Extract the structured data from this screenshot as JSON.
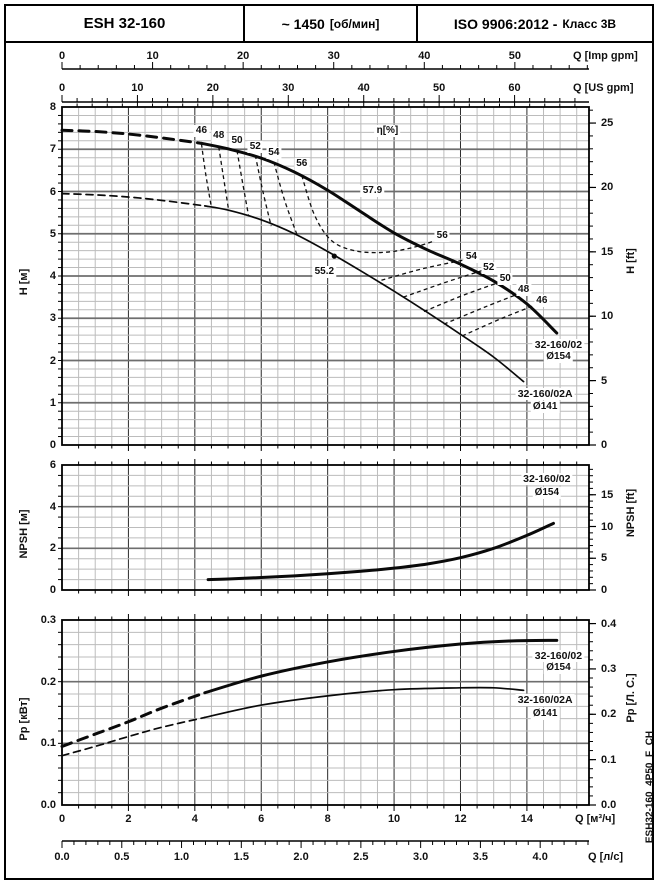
{
  "header": {
    "model": "ESH 32-160",
    "speed_value": "~ 1450",
    "speed_unit": "[об/мин]",
    "iso_main": "ISO 9906:2012 -",
    "iso_class": "Класс 3В"
  },
  "side_code": "ESH32-160_4P50_F_CH",
  "axes": {
    "imp_gpm": {
      "label": "Q [Imp gpm]",
      "minor_q": 0.5455,
      "ticks": [
        {
          "t": "0",
          "q": 0
        },
        {
          "t": "10",
          "q": 2.728
        },
        {
          "t": "20",
          "q": 5.455
        },
        {
          "t": "30",
          "q": 8.183
        },
        {
          "t": "40",
          "q": 10.911
        },
        {
          "t": "50",
          "q": 13.638
        }
      ]
    },
    "us_gpm": {
      "label": "Q [US gpm]",
      "minor_q": 0.4543,
      "ticks": [
        {
          "t": "0",
          "q": 0
        },
        {
          "t": "10",
          "q": 2.271
        },
        {
          "t": "20",
          "q": 4.543
        },
        {
          "t": "30",
          "q": 6.814
        },
        {
          "t": "40",
          "q": 9.085
        },
        {
          "t": "50",
          "q": 11.356
        },
        {
          "t": "60",
          "q": 13.628
        }
      ]
    },
    "m3h": {
      "label": "Q [м³/ч]",
      "minor_q": 0.5,
      "ticks": [
        {
          "t": "0",
          "q": 0
        },
        {
          "t": "2",
          "q": 2
        },
        {
          "t": "4",
          "q": 4
        },
        {
          "t": "6",
          "q": 6
        },
        {
          "t": "8",
          "q": 8
        },
        {
          "t": "10",
          "q": 10
        },
        {
          "t": "12",
          "q": 12
        },
        {
          "t": "14",
          "q": 14
        }
      ]
    },
    "ls": {
      "label": "Q [л/с]",
      "minor_q": 0.36,
      "ticks": [
        {
          "t": "0.0",
          "q": 0
        },
        {
          "t": "0.5",
          "q": 1.8
        },
        {
          "t": "1.0",
          "q": 3.6
        },
        {
          "t": "1.5",
          "q": 5.4
        },
        {
          "t": "2.0",
          "q": 7.2
        },
        {
          "t": "2.5",
          "q": 9.0
        },
        {
          "t": "3.0",
          "q": 10.8
        },
        {
          "t": "3.5",
          "q": 12.6
        },
        {
          "t": "4.0",
          "q": 14.4
        }
      ]
    }
  },
  "chart_data": [
    {
      "id": "head",
      "type": "line",
      "x_unit": "м³/ч",
      "xlim": [
        0,
        15.87
      ],
      "ylim": [
        0,
        8
      ],
      "left_axis": {
        "title": "H [м]",
        "minor": 0.2,
        "ticks": [
          {
            "t": "0",
            "v": 0
          },
          {
            "t": "1",
            "v": 1
          },
          {
            "t": "2",
            "v": 2
          },
          {
            "t": "3",
            "v": 3
          },
          {
            "t": "4",
            "v": 4
          },
          {
            "t": "5",
            "v": 5
          },
          {
            "t": "6",
            "v": 6
          },
          {
            "t": "7",
            "v": 7
          },
          {
            "t": "8",
            "v": 8
          }
        ]
      },
      "right_axis": {
        "title": "H [ft]",
        "minor": 0.3048,
        "ticks": [
          {
            "t": "0",
            "v": 0
          },
          {
            "t": "5",
            "v": 1.524
          },
          {
            "t": "10",
            "v": 3.048
          },
          {
            "t": "15",
            "v": 4.572
          },
          {
            "t": "20",
            "v": 6.096
          },
          {
            "t": "25",
            "v": 7.62
          }
        ]
      },
      "series": [
        {
          "name": "32-160/02 Ø154",
          "style": "thick",
          "solid_from": 4.2,
          "points": [
            [
              0,
              7.45
            ],
            [
              1,
              7.42
            ],
            [
              2,
              7.36
            ],
            [
              3,
              7.27
            ],
            [
              4.2,
              7.14
            ],
            [
              5,
              7.01
            ],
            [
              6,
              6.79
            ],
            [
              7,
              6.46
            ],
            [
              8,
              6.03
            ],
            [
              9,
              5.52
            ],
            [
              10,
              5.02
            ],
            [
              11,
              4.62
            ],
            [
              12,
              4.28
            ],
            [
              13,
              3.88
            ],
            [
              14,
              3.34
            ],
            [
              14.9,
              2.65
            ]
          ]
        },
        {
          "name": "32-160/02A Ø141",
          "style": "thin",
          "solid_from": 4.3,
          "bep": [
            8.2,
            4.47
          ],
          "points": [
            [
              0,
              5.95
            ],
            [
              1,
              5.92
            ],
            [
              2,
              5.87
            ],
            [
              3,
              5.79
            ],
            [
              4.3,
              5.66
            ],
            [
              5,
              5.56
            ],
            [
              6,
              5.33
            ],
            [
              7,
              5.0
            ],
            [
              8,
              4.58
            ],
            [
              9,
              4.12
            ],
            [
              10,
              3.64
            ],
            [
              11,
              3.14
            ],
            [
              12,
              2.62
            ],
            [
              13,
              2.08
            ],
            [
              13.9,
              1.5
            ]
          ]
        }
      ],
      "efficiency_contours": [
        {
          "label": "46",
          "points": [
            [
              4.2,
              7.13
            ],
            [
              4.32,
              6.45
            ],
            [
              4.5,
              5.62
            ]
          ]
        },
        {
          "label": "48",
          "points": [
            [
              4.72,
              7.06
            ],
            [
              4.86,
              6.35
            ],
            [
              5.02,
              5.55
            ]
          ]
        },
        {
          "label": "50",
          "points": [
            [
              5.27,
              6.97
            ],
            [
              5.44,
              6.2
            ],
            [
              5.62,
              5.42
            ]
          ]
        },
        {
          "label": "52",
          "points": [
            [
              5.82,
              6.86
            ],
            [
              6.05,
              6.0
            ],
            [
              6.3,
              5.18
            ]
          ]
        },
        {
          "label": "54",
          "points": [
            [
              6.38,
              6.7
            ],
            [
              6.7,
              5.8
            ],
            [
              7.08,
              4.97
            ]
          ]
        },
        {
          "label": "56",
          "points": [
            [
              7.22,
              6.38
            ],
            [
              7.6,
              5.45
            ],
            [
              8.1,
              4.85
            ],
            [
              8.8,
              4.6
            ],
            [
              9.7,
              4.56
            ],
            [
              10.6,
              4.68
            ],
            [
              11.4,
              4.88
            ]
          ]
        },
        {
          "label": "54",
          "points": [
            [
              9.62,
              3.9
            ],
            [
              10.9,
              4.18
            ],
            [
              12.25,
              4.4
            ]
          ]
        },
        {
          "label": "52",
          "points": [
            [
              10.28,
              3.5
            ],
            [
              11.55,
              3.85
            ],
            [
              12.78,
              4.16
            ]
          ]
        },
        {
          "label": "50",
          "points": [
            [
              10.9,
              3.16
            ],
            [
              12.1,
              3.55
            ],
            [
              13.28,
              3.88
            ]
          ]
        },
        {
          "label": "48",
          "points": [
            [
              11.5,
              2.86
            ],
            [
              12.72,
              3.26
            ],
            [
              13.82,
              3.6
            ]
          ]
        },
        {
          "label": "46",
          "points": [
            [
              12.05,
              2.58
            ],
            [
              13.25,
              3.0
            ],
            [
              14.38,
              3.35
            ]
          ]
        }
      ],
      "annotations": [
        {
          "t": "46",
          "q": 4.2,
          "v": 7.44
        },
        {
          "t": "48",
          "q": 4.72,
          "v": 7.32
        },
        {
          "t": "50",
          "q": 5.27,
          "v": 7.19
        },
        {
          "t": "52",
          "q": 5.82,
          "v": 7.05
        },
        {
          "t": "54",
          "q": 6.38,
          "v": 6.92
        },
        {
          "t": "56",
          "q": 7.22,
          "v": 6.66
        },
        {
          "t": "η[%]",
          "q": 9.8,
          "v": 7.43
        },
        {
          "t": "57.9",
          "q": 9.35,
          "v": 6.02
        },
        {
          "t": "55.2",
          "q": 7.9,
          "v": 4.1
        },
        {
          "t": "56",
          "q": 11.45,
          "v": 4.95
        },
        {
          "t": "54",
          "q": 12.33,
          "v": 4.44
        },
        {
          "t": "52",
          "q": 12.85,
          "v": 4.2
        },
        {
          "t": "50",
          "q": 13.35,
          "v": 3.92
        },
        {
          "t": "48",
          "q": 13.9,
          "v": 3.66
        },
        {
          "t": "46",
          "q": 14.45,
          "v": 3.4
        },
        {
          "t": "32-160/02",
          "q": 14.95,
          "v": 2.36
        },
        {
          "t": "Ø154",
          "q": 14.95,
          "v": 2.08
        },
        {
          "t": "32-160/02A",
          "q": 14.55,
          "v": 1.2
        },
        {
          "t": "Ø141",
          "q": 14.55,
          "v": 0.9
        }
      ]
    },
    {
      "id": "npsh",
      "type": "line",
      "x_unit": "м³/ч",
      "xlim": [
        0,
        15.87
      ],
      "ylim": [
        0,
        6
      ],
      "left_axis": {
        "title": "NPSH [м]",
        "minor": 0.5,
        "ticks": [
          {
            "t": "0",
            "v": 0
          },
          {
            "t": "2",
            "v": 2
          },
          {
            "t": "4",
            "v": 4
          },
          {
            "t": "6",
            "v": 6
          }
        ]
      },
      "right_axis": {
        "title": "NPSH [ft]",
        "minor": 0.3048,
        "ticks": [
          {
            "t": "0",
            "v": 0
          },
          {
            "t": "5",
            "v": 1.524
          },
          {
            "t": "10",
            "v": 3.048
          },
          {
            "t": "15",
            "v": 4.572
          }
        ]
      },
      "series": [
        {
          "name": "32-160/02 Ø154",
          "style": "thick",
          "solid_from": 0,
          "points": [
            [
              4.4,
              0.5
            ],
            [
              5,
              0.53
            ],
            [
              6,
              0.6
            ],
            [
              7,
              0.68
            ],
            [
              8,
              0.78
            ],
            [
              9,
              0.9
            ],
            [
              10,
              1.05
            ],
            [
              11,
              1.25
            ],
            [
              12,
              1.55
            ],
            [
              13,
              2.0
            ],
            [
              14,
              2.62
            ],
            [
              14.8,
              3.2
            ]
          ]
        }
      ],
      "efficiency_contours": [],
      "annotations": [
        {
          "t": "32-160/02",
          "q": 14.6,
          "v": 5.35
        },
        {
          "t": "Ø154",
          "q": 14.6,
          "v": 4.68
        }
      ]
    },
    {
      "id": "power",
      "type": "line",
      "x_unit": "м³/ч",
      "xlim": [
        0,
        15.87
      ],
      "ylim": [
        0,
        0.3
      ],
      "left_axis": {
        "title": "Pр [кВт]",
        "minor": 0.02,
        "ticks": [
          {
            "t": "0.0",
            "v": 0
          },
          {
            "t": "0.1",
            "v": 0.1
          },
          {
            "t": "0.2",
            "v": 0.2
          },
          {
            "t": "0.3",
            "v": 0.3
          }
        ]
      },
      "right_axis": {
        "title": "Pр [Л. С.]",
        "minor": 0.01471,
        "ticks": [
          {
            "t": "0.0",
            "v": 0
          },
          {
            "t": "0.1",
            "v": 0.07355
          },
          {
            "t": "0.2",
            "v": 0.1471
          },
          {
            "t": "0.3",
            "v": 0.22065
          },
          {
            "t": "0.4",
            "v": 0.2942
          }
        ]
      },
      "series": [
        {
          "name": "32-160/02 Ø154",
          "style": "thick",
          "solid_from": 4.3,
          "points": [
            [
              0,
              0.095
            ],
            [
              1,
              0.115
            ],
            [
              2,
              0.135
            ],
            [
              3,
              0.157
            ],
            [
              4.3,
              0.182
            ],
            [
              6,
              0.209
            ],
            [
              8,
              0.232
            ],
            [
              10,
              0.249
            ],
            [
              12,
              0.261
            ],
            [
              13.5,
              0.266
            ],
            [
              14.9,
              0.267
            ]
          ]
        },
        {
          "name": "32-160/02A Ø141",
          "style": "thin",
          "solid_from": 4.3,
          "points": [
            [
              0,
              0.08
            ],
            [
              1,
              0.095
            ],
            [
              2,
              0.111
            ],
            [
              3,
              0.126
            ],
            [
              4.3,
              0.142
            ],
            [
              6,
              0.162
            ],
            [
              8,
              0.177
            ],
            [
              10,
              0.187
            ],
            [
              12,
              0.19
            ],
            [
              13,
              0.19
            ],
            [
              13.9,
              0.186
            ]
          ]
        }
      ],
      "efficiency_contours": [],
      "annotations": [
        {
          "t": "32-160/02",
          "q": 14.95,
          "v": 0.242
        },
        {
          "t": "Ø154",
          "q": 14.95,
          "v": 0.222
        },
        {
          "t": "32-160/02A",
          "q": 14.55,
          "v": 0.17
        },
        {
          "t": "Ø141",
          "q": 14.55,
          "v": 0.147
        }
      ]
    }
  ]
}
